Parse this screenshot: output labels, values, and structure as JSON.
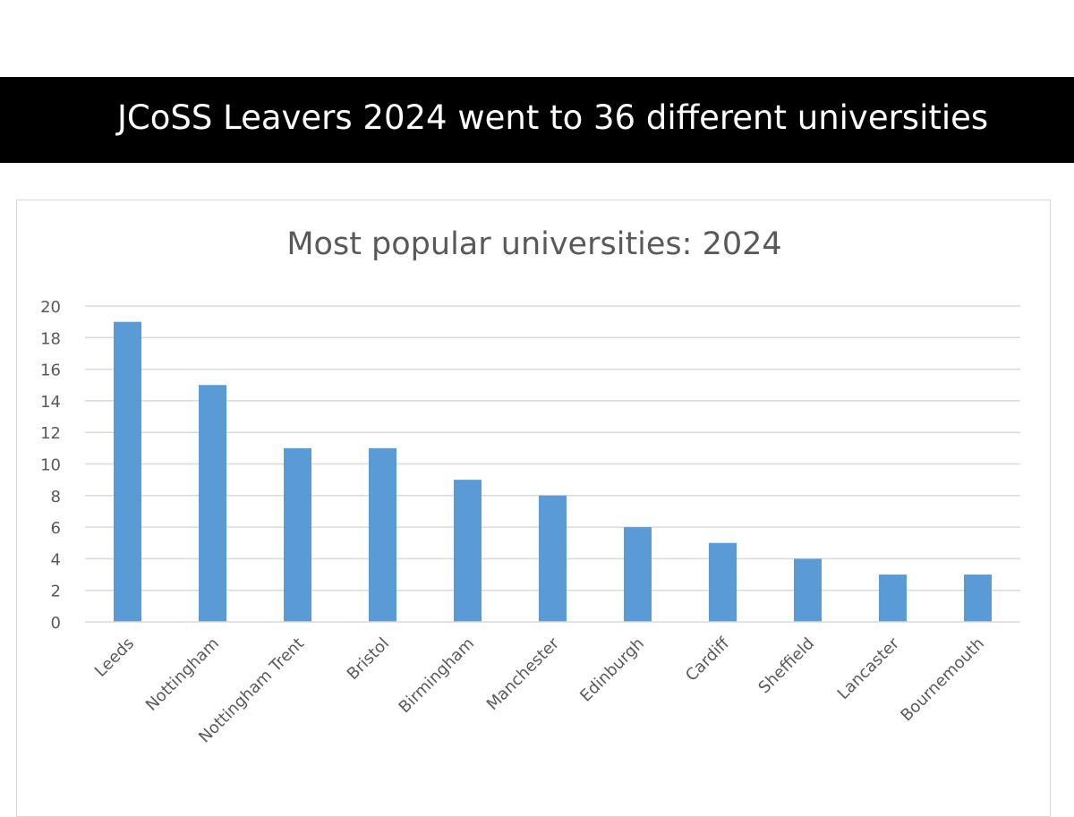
{
  "banner": {
    "title": "JCoSS Leavers 2024 went to 36 different universities"
  },
  "chart_data": {
    "type": "bar",
    "title": "Most popular universities: 2024",
    "xlabel": "",
    "ylabel": "",
    "categories": [
      "Leeds",
      "Nottingham",
      "Nottingham Trent",
      "Bristol",
      "Birmingham",
      "Manchester",
      "Edinburgh",
      "Cardiff",
      "Sheffield",
      "Lancaster",
      "Bournemouth"
    ],
    "values": [
      19,
      15,
      11,
      11,
      9,
      8,
      6,
      5,
      4,
      3,
      3
    ],
    "ylim": [
      0,
      20
    ],
    "yticks": [
      0,
      2,
      4,
      6,
      8,
      10,
      12,
      14,
      16,
      18,
      20
    ],
    "grid": true,
    "legend": "none",
    "bar_color": "#5b9bd5",
    "grid_color": "#d9d9d9"
  }
}
